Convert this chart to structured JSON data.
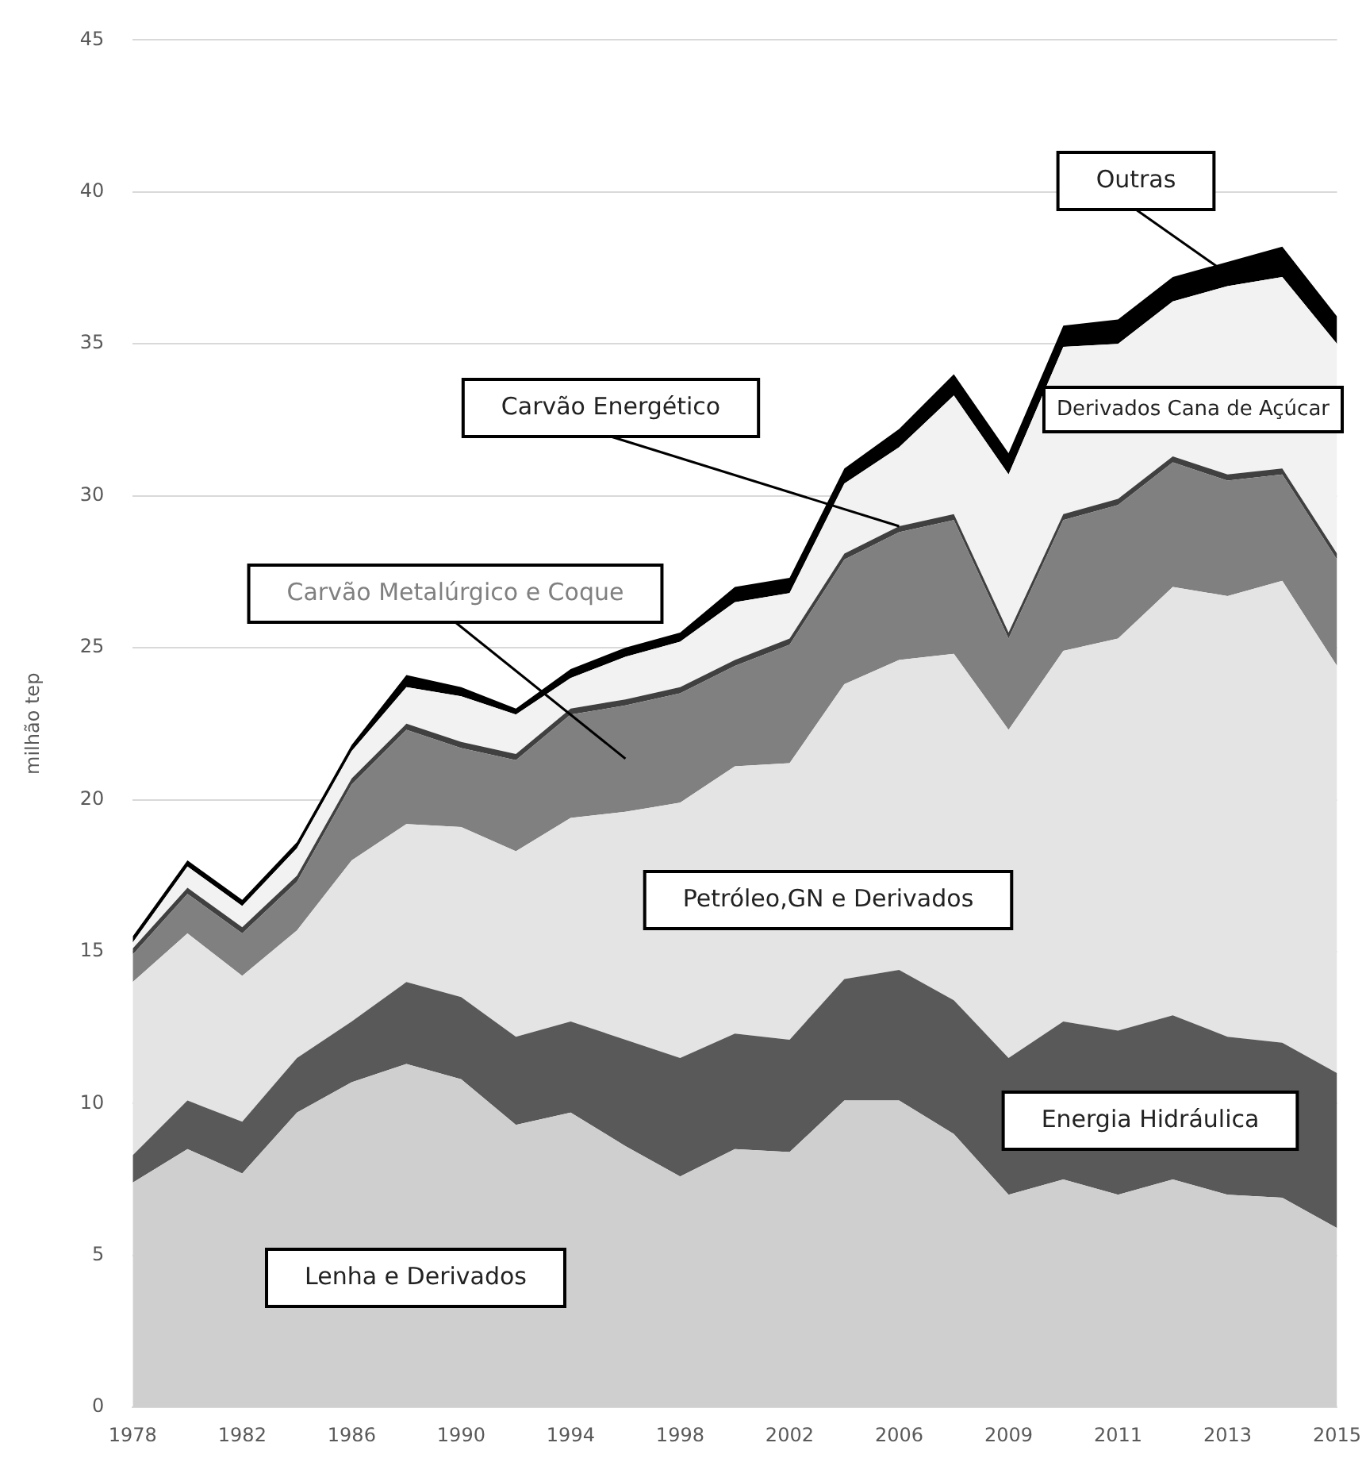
{
  "chart_data": {
    "type": "area",
    "stacked": true,
    "ylabel": "milhão tep",
    "categories": [
      "1978",
      null,
      "1982",
      null,
      "1986",
      null,
      "1990",
      null,
      "1994",
      null,
      "1998",
      null,
      "2002",
      null,
      "2006",
      null,
      "2009",
      null,
      "2011",
      null,
      "2013",
      null,
      "2015"
    ],
    "ylim": [
      0,
      45
    ],
    "yticks": [
      0,
      5,
      10,
      15,
      20,
      25,
      30,
      35,
      40,
      45
    ],
    "grid": "y",
    "legend": false,
    "marker": "none",
    "series": [
      {
        "name": "Lenha e Derivados",
        "color": "#d0cfd0",
        "values": [
          7.4,
          8.5,
          7.7,
          9.7,
          10.7,
          11.3,
          10.8,
          9.3,
          9.7,
          8.6,
          7.6,
          8.5,
          8.4,
          10.1,
          10.1,
          9.0,
          7.0,
          7.5,
          7.0,
          7.5,
          7.0,
          6.9,
          5.9
        ]
      },
      {
        "name": "Energia Hidráulica",
        "color": "#595959",
        "values": [
          0.9,
          1.6,
          1.7,
          1.8,
          2.0,
          2.7,
          2.7,
          2.9,
          3.0,
          3.5,
          3.9,
          3.8,
          3.7,
          4.0,
          4.3,
          4.4,
          4.5,
          5.2,
          5.4,
          5.4,
          5.2,
          5.1,
          5.1
        ]
      },
      {
        "name": "Petróleo,GN e Derivados",
        "color": "#e4e4e4",
        "values": [
          5.7,
          5.5,
          4.8,
          4.2,
          5.3,
          5.2,
          5.6,
          6.1,
          6.7,
          7.5,
          8.4,
          8.8,
          9.1,
          9.7,
          10.2,
          11.4,
          10.8,
          12.2,
          12.9,
          14.1,
          14.5,
          15.2,
          13.4
        ]
      },
      {
        "name": "Carvão Metalúrgico e Coque",
        "color": "#808080",
        "values": [
          0.9,
          1.3,
          1.4,
          1.6,
          2.5,
          3.1,
          2.6,
          3.0,
          3.4,
          3.5,
          3.6,
          3.3,
          3.9,
          4.1,
          4.2,
          4.4,
          3.0,
          4.3,
          4.4,
          4.1,
          3.8,
          3.5,
          3.5
        ]
      },
      {
        "name": "Carvão Energético",
        "color": "#404040",
        "values": [
          0.2,
          0.2,
          0.2,
          0.2,
          0.2,
          0.2,
          0.2,
          0.2,
          0.2,
          0.2,
          0.2,
          0.2,
          0.2,
          0.2,
          0.2,
          0.2,
          0.2,
          0.2,
          0.2,
          0.2,
          0.2,
          0.2,
          0.2
        ]
      },
      {
        "name": "Derivados Cana de Açúcar",
        "color": "#f2f2f2",
        "values": [
          0.2,
          0.7,
          0.7,
          0.9,
          0.9,
          1.2,
          1.5,
          1.3,
          1.0,
          1.4,
          1.5,
          1.9,
          1.5,
          2.3,
          2.6,
          3.9,
          5.2,
          5.5,
          5.1,
          5.1,
          6.2,
          6.3,
          6.9
        ]
      },
      {
        "name": "Outras",
        "color": "#000000",
        "values": [
          0.2,
          0.2,
          0.2,
          0.2,
          0.2,
          0.4,
          0.3,
          0.2,
          0.3,
          0.3,
          0.3,
          0.5,
          0.5,
          0.5,
          0.6,
          0.7,
          0.7,
          0.7,
          0.8,
          0.8,
          0.8,
          1.0,
          0.9
        ]
      }
    ]
  }
}
